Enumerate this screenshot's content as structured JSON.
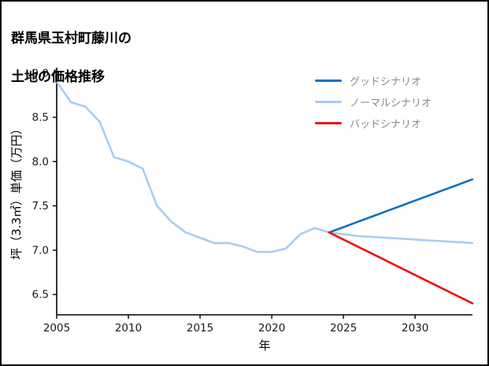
{
  "title": {
    "line1": "群馬県玉村町藤川の",
    "line2": "土地の価格推移"
  },
  "chart_data": {
    "type": "line",
    "title": "群馬県玉村町藤川の土地の価格推移",
    "xlabel": "年",
    "ylabel": "坪（3.3㎡）単価（万円）",
    "xlim": [
      2005,
      2034
    ],
    "ylim": [
      6.27,
      9.06
    ],
    "xticks": [
      2005,
      2010,
      2015,
      2020,
      2025,
      2030
    ],
    "yticks": [
      6.5,
      7.0,
      7.5,
      8.0,
      8.5,
      9.0
    ],
    "grid": false,
    "legend_position": "top-right",
    "axis_color": "#000000",
    "tick_label_color": "#1a1a1a",
    "series": [
      {
        "name": "グッドシナリオ",
        "color": "#1170c0",
        "z": 2,
        "x": [
          2024,
          2025,
          2026,
          2027,
          2028,
          2029,
          2030,
          2031,
          2032,
          2033,
          2034
        ],
        "y": [
          7.2,
          7.26,
          7.32,
          7.38,
          7.44,
          7.5,
          7.56,
          7.62,
          7.68,
          7.74,
          7.8
        ]
      },
      {
        "name": "ノーマルシナリオ",
        "color": "#a8cdf0",
        "z": 1,
        "x": [
          2005,
          2006,
          2007,
          2008,
          2009,
          2010,
          2011,
          2012,
          2013,
          2014,
          2015,
          2016,
          2017,
          2018,
          2019,
          2020,
          2021,
          2022,
          2023,
          2024,
          2025,
          2026,
          2027,
          2028,
          2029,
          2030,
          2031,
          2032,
          2033,
          2034
        ],
        "y": [
          8.9,
          8.67,
          8.62,
          8.45,
          8.05,
          8.0,
          7.92,
          7.5,
          7.32,
          7.2,
          7.14,
          7.08,
          7.08,
          7.04,
          6.98,
          6.98,
          7.02,
          7.18,
          7.25,
          7.2,
          7.18,
          7.16,
          7.15,
          7.14,
          7.13,
          7.12,
          7.11,
          7.1,
          7.09,
          7.08
        ]
      },
      {
        "name": "バッドシナリオ",
        "color": "#ee1111",
        "z": 3,
        "x": [
          2024,
          2025,
          2026,
          2027,
          2028,
          2029,
          2030,
          2031,
          2032,
          2033,
          2034
        ],
        "y": [
          7.2,
          7.12,
          7.04,
          6.96,
          6.88,
          6.8,
          6.72,
          6.64,
          6.56,
          6.48,
          6.4
        ]
      }
    ]
  }
}
